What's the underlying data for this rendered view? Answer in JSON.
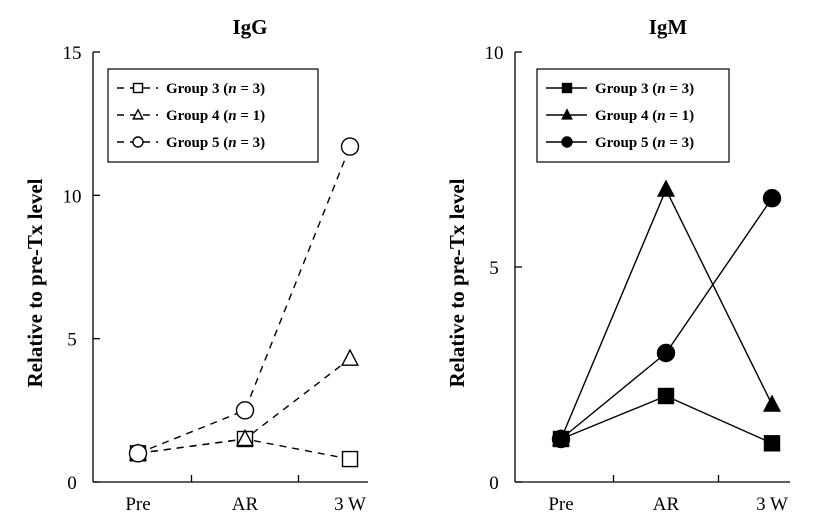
{
  "chart_data": [
    {
      "type": "line",
      "title": "IgG",
      "ylabel": "Relative to pre-Tx  level",
      "xlabel": "",
      "categories": [
        "Pre",
        "AR",
        "3 W"
      ],
      "ylim": [
        0,
        15
      ],
      "yticks": [
        "0",
        "5",
        "10",
        "15"
      ],
      "line_style": "dashed",
      "marker_fill": "open",
      "series": [
        {
          "name": "Group 3",
          "n_label": "(n = 3)",
          "marker": "square",
          "values": [
            1.0,
            1.5,
            0.8
          ]
        },
        {
          "name": "Group 4",
          "n_label": "(n = 1)",
          "marker": "triangle",
          "values": [
            1.0,
            1.5,
            4.3
          ]
        },
        {
          "name": "Group 5",
          "n_label": "(n = 3)",
          "marker": "circle",
          "values": [
            1.0,
            2.5,
            11.7
          ]
        }
      ],
      "legend": "top-left",
      "grid": false
    },
    {
      "type": "line",
      "title": "IgM",
      "ylabel": "Relative to pre-Tx  level",
      "xlabel": "",
      "categories": [
        "Pre",
        "AR",
        "3 W"
      ],
      "ylim": [
        0,
        10
      ],
      "yticks": [
        "0",
        "5",
        "10"
      ],
      "line_style": "solid",
      "marker_fill": "filled",
      "series": [
        {
          "name": "Group 3",
          "n_label": "(n = 3)",
          "marker": "square",
          "values": [
            1.0,
            2.0,
            0.9
          ]
        },
        {
          "name": "Group 4",
          "n_label": "(n = 1)",
          "marker": "triangle",
          "values": [
            1.0,
            6.8,
            1.8
          ]
        },
        {
          "name": "Group 5",
          "n_label": "(n = 3)",
          "marker": "circle",
          "values": [
            1.0,
            3.0,
            6.6
          ]
        }
      ],
      "legend": "top-left",
      "grid": false
    }
  ]
}
